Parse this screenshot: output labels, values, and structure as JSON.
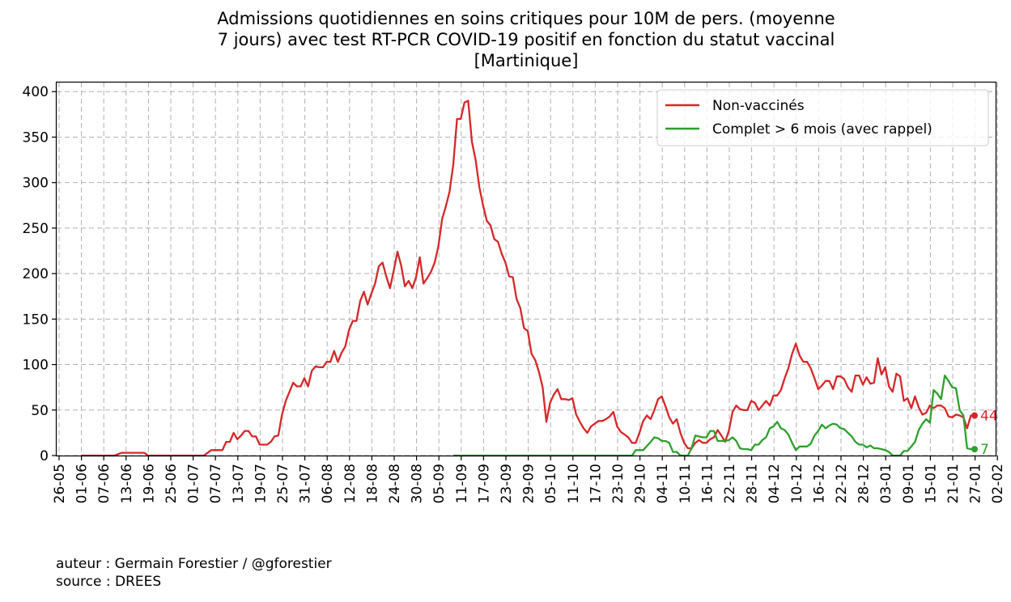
{
  "chart_data": {
    "type": "line",
    "title": "Admissions quotidiennes en soins critiques pour 10M de pers. (moyenne\n7 jours) avec test RT-PCR COVID-19 positif en fonction du statut vaccinal\n[Martinique]",
    "xlabel": "",
    "ylabel": "",
    "ylim": [
      0,
      410
    ],
    "yticks": [
      0,
      50,
      100,
      150,
      200,
      250,
      300,
      350,
      400
    ],
    "xticks": [
      "26-05",
      "01-06",
      "07-06",
      "13-06",
      "19-06",
      "25-06",
      "01-07",
      "07-07",
      "13-07",
      "19-07",
      "25-07",
      "31-07",
      "06-08",
      "12-08",
      "18-08",
      "24-08",
      "30-08",
      "05-09",
      "11-09",
      "17-09",
      "23-09",
      "29-09",
      "05-10",
      "11-10",
      "17-10",
      "23-10",
      "29-10",
      "04-11",
      "10-11",
      "16-11",
      "22-11",
      "28-11",
      "04-12",
      "10-12",
      "16-12",
      "22-12",
      "28-12",
      "03-01",
      "09-01",
      "15-01",
      "21-01",
      "27-01",
      "02-02"
    ],
    "grid": true,
    "legend_position": "top-right",
    "series": [
      {
        "name": "Non-vaccinés",
        "color": "#d62728",
        "end_label": "44",
        "points": [
          [
            0,
            0
          ],
          [
            5,
            0
          ],
          [
            9,
            0
          ],
          [
            11,
            3
          ],
          [
            17,
            3
          ],
          [
            18,
            0
          ],
          [
            33,
            0
          ],
          [
            35,
            6
          ],
          [
            38,
            6
          ],
          [
            39,
            15
          ],
          [
            40,
            15
          ],
          [
            41,
            25
          ],
          [
            42,
            18
          ],
          [
            43,
            22
          ],
          [
            44,
            27
          ],
          [
            45,
            27
          ],
          [
            46,
            21
          ],
          [
            47,
            21
          ],
          [
            48,
            12
          ],
          [
            50,
            12
          ],
          [
            51,
            15
          ],
          [
            52,
            21
          ],
          [
            53,
            22
          ],
          [
            54,
            45
          ],
          [
            55,
            60
          ],
          [
            56,
            70
          ],
          [
            57,
            80
          ],
          [
            58,
            76
          ],
          [
            59,
            76
          ],
          [
            60,
            85
          ],
          [
            61,
            76
          ],
          [
            62,
            93
          ],
          [
            63,
            98
          ],
          [
            64,
            97
          ],
          [
            65,
            97
          ],
          [
            66,
            103
          ],
          [
            67,
            103
          ],
          [
            68,
            115
          ],
          [
            69,
            103
          ],
          [
            70,
            113
          ],
          [
            71,
            120
          ],
          [
            72,
            138
          ],
          [
            73,
            148
          ],
          [
            74,
            148
          ],
          [
            75,
            170
          ],
          [
            76,
            180
          ],
          [
            77,
            166
          ],
          [
            78,
            178
          ],
          [
            79,
            189
          ],
          [
            80,
            208
          ],
          [
            81,
            212
          ],
          [
            82,
            197
          ],
          [
            83,
            184
          ],
          [
            84,
            203
          ],
          [
            85,
            224
          ],
          [
            86,
            209
          ],
          [
            87,
            186
          ],
          [
            88,
            192
          ],
          [
            89,
            184
          ],
          [
            90,
            196
          ],
          [
            91,
            218
          ],
          [
            92,
            189
          ],
          [
            93,
            195
          ],
          [
            94,
            202
          ],
          [
            95,
            212
          ],
          [
            96,
            230
          ],
          [
            97,
            260
          ],
          [
            98,
            274
          ],
          [
            99,
            290
          ],
          [
            100,
            320
          ],
          [
            101,
            370
          ],
          [
            102,
            370
          ],
          [
            103,
            388
          ],
          [
            104,
            390
          ],
          [
            105,
            345
          ],
          [
            106,
            325
          ],
          [
            107,
            295
          ],
          [
            108,
            275
          ],
          [
            109,
            258
          ],
          [
            110,
            253
          ],
          [
            111,
            238
          ],
          [
            112,
            235
          ],
          [
            113,
            222
          ],
          [
            114,
            212
          ],
          [
            115,
            197
          ],
          [
            116,
            196
          ],
          [
            117,
            172
          ],
          [
            118,
            162
          ],
          [
            119,
            140
          ],
          [
            120,
            137
          ],
          [
            121,
            112
          ],
          [
            122,
            105
          ],
          [
            123,
            92
          ],
          [
            124,
            75
          ],
          [
            125,
            37
          ],
          [
            126,
            58
          ],
          [
            127,
            67
          ],
          [
            128,
            73
          ],
          [
            129,
            62
          ],
          [
            130,
            62
          ],
          [
            131,
            61
          ],
          [
            132,
            63
          ],
          [
            133,
            45
          ],
          [
            134,
            37
          ],
          [
            135,
            30
          ],
          [
            136,
            25
          ],
          [
            137,
            32
          ],
          [
            138,
            35
          ],
          [
            139,
            38
          ],
          [
            140,
            38
          ],
          [
            141,
            40
          ],
          [
            142,
            43
          ],
          [
            143,
            48
          ],
          [
            144,
            32
          ],
          [
            145,
            26
          ],
          [
            146,
            23
          ],
          [
            147,
            20
          ],
          [
            148,
            14
          ],
          [
            149,
            14
          ],
          [
            150,
            25
          ],
          [
            151,
            38
          ],
          [
            152,
            44
          ],
          [
            153,
            40
          ],
          [
            154,
            50
          ],
          [
            155,
            62
          ],
          [
            156,
            65
          ],
          [
            157,
            54
          ],
          [
            158,
            42
          ],
          [
            159,
            35
          ],
          [
            160,
            40
          ],
          [
            161,
            25
          ],
          [
            162,
            14
          ],
          [
            163,
            8
          ],
          [
            164,
            8
          ],
          [
            165,
            14
          ],
          [
            166,
            17
          ],
          [
            167,
            14
          ],
          [
            168,
            14
          ],
          [
            169,
            18
          ],
          [
            170,
            20
          ],
          [
            171,
            28
          ],
          [
            172,
            22
          ],
          [
            173,
            15
          ],
          [
            174,
            27
          ],
          [
            175,
            48
          ],
          [
            176,
            55
          ],
          [
            177,
            51
          ],
          [
            178,
            50
          ],
          [
            179,
            50
          ],
          [
            180,
            60
          ],
          [
            181,
            58
          ],
          [
            182,
            50
          ],
          [
            183,
            55
          ],
          [
            184,
            60
          ],
          [
            185,
            55
          ],
          [
            186,
            66
          ],
          [
            187,
            66
          ],
          [
            188,
            72
          ],
          [
            189,
            85
          ],
          [
            190,
            96
          ],
          [
            191,
            112
          ],
          [
            192,
            123
          ],
          [
            193,
            110
          ],
          [
            194,
            103
          ],
          [
            195,
            103
          ],
          [
            196,
            96
          ],
          [
            197,
            85
          ],
          [
            198,
            73
          ],
          [
            199,
            77
          ],
          [
            200,
            82
          ],
          [
            201,
            82
          ],
          [
            202,
            73
          ],
          [
            203,
            87
          ],
          [
            204,
            87
          ],
          [
            205,
            84
          ],
          [
            206,
            75
          ],
          [
            207,
            70
          ],
          [
            208,
            88
          ],
          [
            209,
            88
          ],
          [
            210,
            78
          ],
          [
            211,
            86
          ],
          [
            212,
            79
          ],
          [
            213,
            80
          ],
          [
            214,
            107
          ],
          [
            215,
            89
          ],
          [
            216,
            97
          ],
          [
            217,
            76
          ],
          [
            218,
            70
          ],
          [
            219,
            90
          ],
          [
            220,
            87
          ],
          [
            221,
            60
          ],
          [
            222,
            63
          ],
          [
            223,
            52
          ],
          [
            224,
            65
          ],
          [
            225,
            53
          ],
          [
            226,
            45
          ],
          [
            227,
            47
          ],
          [
            228,
            55
          ],
          [
            229,
            52
          ],
          [
            230,
            55
          ],
          [
            231,
            55
          ],
          [
            232,
            52
          ],
          [
            233,
            43
          ],
          [
            234,
            42
          ],
          [
            235,
            45
          ],
          [
            236,
            44
          ],
          [
            237,
            42
          ],
          [
            238,
            30
          ],
          [
            239,
            44
          ],
          [
            240,
            44
          ]
        ]
      },
      {
        "name": "Complet > 6 mois (avec rappel)",
        "color": "#2ca02c",
        "end_label": "7",
        "points": [
          [
            100,
            0
          ],
          [
            148,
            0
          ],
          [
            149,
            6
          ],
          [
            151,
            6
          ],
          [
            153,
            15
          ],
          [
            154,
            20
          ],
          [
            155,
            19
          ],
          [
            156,
            16
          ],
          [
            157,
            16
          ],
          [
            158,
            14
          ],
          [
            159,
            4
          ],
          [
            160,
            4
          ],
          [
            161,
            0
          ],
          [
            163,
            0
          ],
          [
            164,
            8
          ],
          [
            165,
            22
          ],
          [
            166,
            21
          ],
          [
            167,
            20
          ],
          [
            168,
            20
          ],
          [
            169,
            27
          ],
          [
            170,
            27
          ],
          [
            171,
            16
          ],
          [
            172,
            16
          ],
          [
            173,
            16
          ],
          [
            174,
            17
          ],
          [
            175,
            20
          ],
          [
            176,
            16
          ],
          [
            177,
            8
          ],
          [
            178,
            7
          ],
          [
            179,
            7
          ],
          [
            180,
            6
          ],
          [
            181,
            12
          ],
          [
            182,
            12
          ],
          [
            183,
            17
          ],
          [
            184,
            20
          ],
          [
            185,
            30
          ],
          [
            186,
            32
          ],
          [
            187,
            37
          ],
          [
            188,
            30
          ],
          [
            189,
            28
          ],
          [
            190,
            23
          ],
          [
            191,
            14
          ],
          [
            192,
            6
          ],
          [
            193,
            10
          ],
          [
            194,
            10
          ],
          [
            195,
            10
          ],
          [
            196,
            13
          ],
          [
            197,
            22
          ],
          [
            198,
            27
          ],
          [
            199,
            34
          ],
          [
            200,
            30
          ],
          [
            201,
            33
          ],
          [
            202,
            35
          ],
          [
            203,
            34
          ],
          [
            204,
            30
          ],
          [
            205,
            29
          ],
          [
            206,
            25
          ],
          [
            207,
            21
          ],
          [
            208,
            15
          ],
          [
            209,
            12
          ],
          [
            210,
            12
          ],
          [
            211,
            9
          ],
          [
            212,
            11
          ],
          [
            213,
            8
          ],
          [
            214,
            8
          ],
          [
            215,
            7
          ],
          [
            216,
            6
          ],
          [
            217,
            4
          ],
          [
            218,
            0
          ],
          [
            220,
            0
          ],
          [
            221,
            5
          ],
          [
            222,
            5
          ],
          [
            223,
            10
          ],
          [
            224,
            15
          ],
          [
            225,
            28
          ],
          [
            226,
            35
          ],
          [
            227,
            40
          ],
          [
            228,
            36
          ],
          [
            229,
            72
          ],
          [
            230,
            68
          ],
          [
            231,
            62
          ],
          [
            232,
            88
          ],
          [
            233,
            82
          ],
          [
            234,
            75
          ],
          [
            235,
            74
          ],
          [
            236,
            50
          ],
          [
            237,
            44
          ],
          [
            238,
            8
          ],
          [
            239,
            7
          ],
          [
            240,
            7
          ]
        ]
      }
    ]
  },
  "credits": {
    "author": "auteur : Germain Forestier / @gforestier",
    "source": "source : DREES"
  }
}
